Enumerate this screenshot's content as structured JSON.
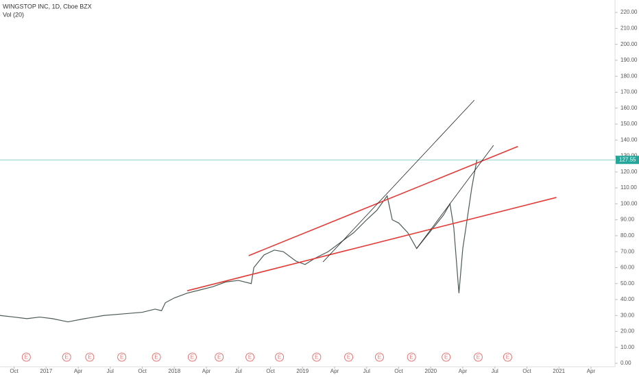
{
  "chart_data": {
    "type": "line",
    "title": "WINGSTOP INC, 1D, Cboe BZX",
    "subtitle": "Vol (20)",
    "x": [
      2016.64,
      2016.75,
      2016.85,
      2016.95,
      2017.05,
      2017.17,
      2017.3,
      2017.45,
      2017.6,
      2017.75,
      2017.85,
      2017.9,
      2017.93,
      2018.0,
      2018.1,
      2018.2,
      2018.3,
      2018.4,
      2018.5,
      2018.6,
      2018.62,
      2018.7,
      2018.78,
      2018.85,
      2018.95,
      2019.02,
      2019.1,
      2019.2,
      2019.3,
      2019.4,
      2019.5,
      2019.58,
      2019.66,
      2019.7,
      2019.75,
      2019.82,
      2019.89,
      2019.95,
      2020.02,
      2020.1,
      2020.15,
      2020.18,
      2020.22,
      2020.25,
      2020.28,
      2020.32,
      2020.36
    ],
    "series": [
      {
        "name": "WINGSTOP INC",
        "color": "#4a5a52",
        "values": [
          30,
          29,
          28,
          29,
          28,
          26,
          28,
          30,
          31,
          32,
          34,
          33,
          38,
          41,
          44,
          46,
          48,
          51,
          52,
          50,
          60,
          68,
          71,
          70,
          64,
          62,
          66,
          70,
          76,
          82,
          90,
          96,
          105,
          90,
          88,
          82,
          72,
          78,
          85,
          93,
          100,
          85,
          44,
          72,
          88,
          110,
          127.55
        ]
      }
    ],
    "last_price": 127.55,
    "last_price_label": "127.55",
    "last_price_color": "#26a69a",
    "trend_lines": [
      {
        "color": "#e53935",
        "x": [
          2018.1,
          2020.98
        ],
        "y": [
          45.5,
          104
        ]
      },
      {
        "color": "#e53935",
        "x": [
          2018.58,
          2020.68
        ],
        "y": [
          67.5,
          136
        ]
      },
      {
        "color": "#222222",
        "x": [
          2019.16,
          2020.34
        ],
        "y": [
          63.6,
          165
        ]
      },
      {
        "color": "#222222",
        "x": [
          2019.89,
          2020.49
        ],
        "y": [
          72,
          136.7
        ]
      }
    ],
    "earnings_x": [
      2016.845,
      2017.16,
      2017.34,
      2017.59,
      2017.86,
      2018.14,
      2018.35,
      2018.59,
      2018.82,
      2019.11,
      2019.36,
      2019.6,
      2019.85,
      2020.12,
      2020.37,
      2020.6
    ],
    "earnings_label": "E",
    "xlim": [
      2016.64,
      2021.4
    ],
    "xticks": [
      {
        "value": 2016.75,
        "label": "Oct"
      },
      {
        "value": 2017.0,
        "label": "2017"
      },
      {
        "value": 2017.25,
        "label": "Apr"
      },
      {
        "value": 2017.5,
        "label": "Jul"
      },
      {
        "value": 2017.75,
        "label": "Oct"
      },
      {
        "value": 2018.0,
        "label": "2018"
      },
      {
        "value": 2018.25,
        "label": "Apr"
      },
      {
        "value": 2018.5,
        "label": "Jul"
      },
      {
        "value": 2018.75,
        "label": "Oct"
      },
      {
        "value": 2019.0,
        "label": "2019"
      },
      {
        "value": 2019.25,
        "label": "Apr"
      },
      {
        "value": 2019.5,
        "label": "Jul"
      },
      {
        "value": 2019.75,
        "label": "Oct"
      },
      {
        "value": 2020.0,
        "label": "2020"
      },
      {
        "value": 2020.25,
        "label": "Apr"
      },
      {
        "value": 2020.5,
        "label": "Jul"
      },
      {
        "value": 2020.75,
        "label": "Oct"
      },
      {
        "value": 2021.0,
        "label": "2021"
      },
      {
        "value": 2021.25,
        "label": "Apr"
      }
    ],
    "ylim": [
      -2,
      225
    ],
    "yticks": [
      {
        "value": 0,
        "label": "0.00"
      },
      {
        "value": 10,
        "label": "10.00"
      },
      {
        "value": 20,
        "label": "20.00"
      },
      {
        "value": 30,
        "label": "30.00"
      },
      {
        "value": 40,
        "label": "40.00"
      },
      {
        "value": 50,
        "label": "50.00"
      },
      {
        "value": 60,
        "label": "60.00"
      },
      {
        "value": 70,
        "label": "70.00"
      },
      {
        "value": 80,
        "label": "80.00"
      },
      {
        "value": 90,
        "label": "90.00"
      },
      {
        "value": 100,
        "label": "100.00"
      },
      {
        "value": 110,
        "label": "110.00"
      },
      {
        "value": 120,
        "label": "120.00"
      },
      {
        "value": 130,
        "label": "130.00"
      },
      {
        "value": 140,
        "label": "140.00"
      },
      {
        "value": 150,
        "label": "150.00"
      },
      {
        "value": 160,
        "label": "160.00"
      },
      {
        "value": 170,
        "label": "170.00"
      },
      {
        "value": 180,
        "label": "180.00"
      },
      {
        "value": 190,
        "label": "190.00"
      },
      {
        "value": 200,
        "label": "200.00"
      },
      {
        "value": 210,
        "label": "210.00"
      },
      {
        "value": 220,
        "label": "220.00"
      }
    ]
  }
}
